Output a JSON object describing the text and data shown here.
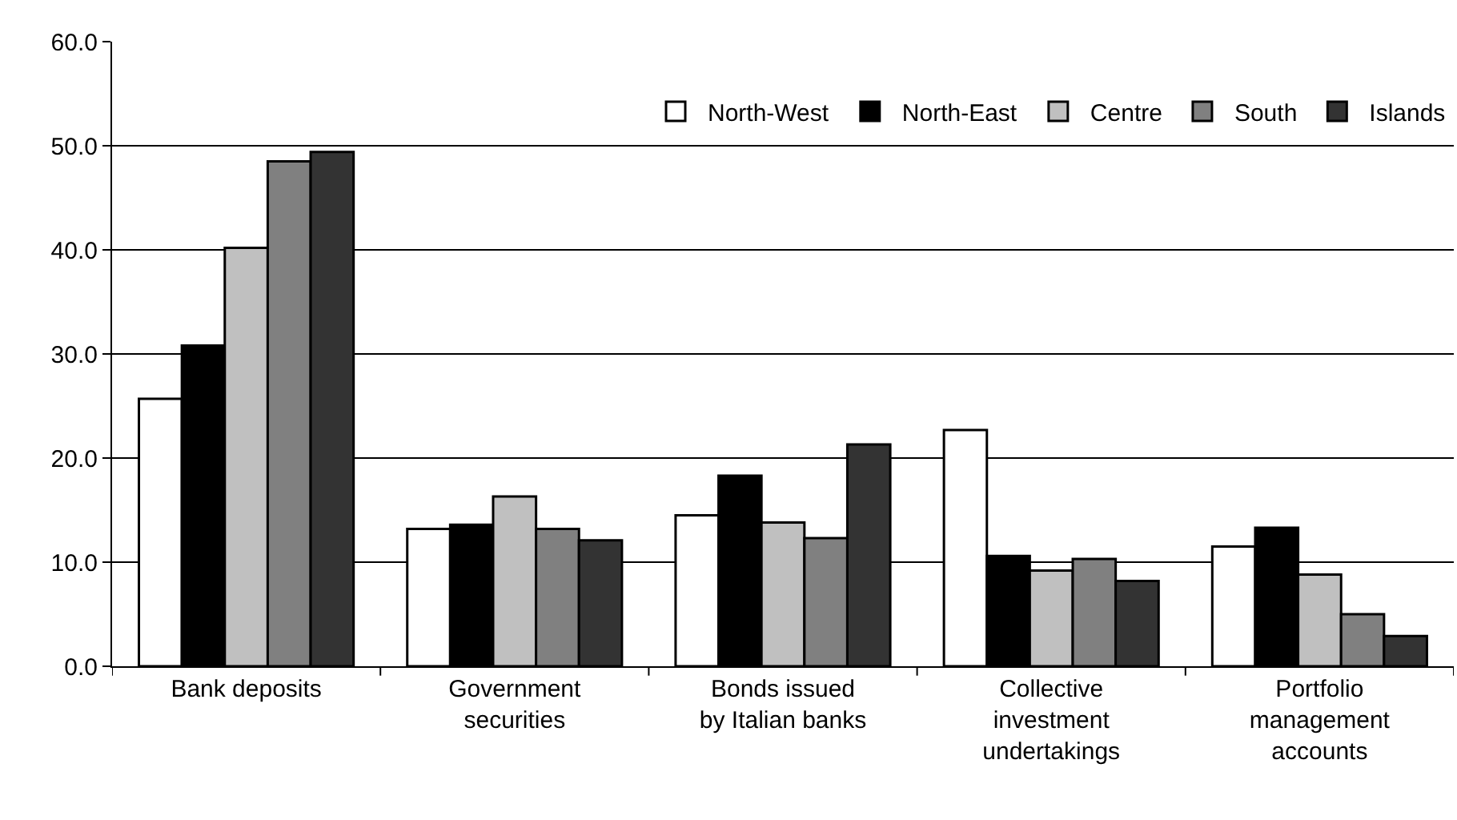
{
  "chart_data": {
    "type": "bar",
    "categories": [
      "Bank deposits",
      "Government\nsecurities",
      "Bonds issued\nby Italian banks",
      "Collective\ninvestment\nundertakings",
      "Portfolio\nmanagement\naccounts"
    ],
    "series": [
      {
        "name": "North-West",
        "color": "#ffffff",
        "values": [
          25.7,
          13.2,
          14.5,
          22.7,
          11.5
        ]
      },
      {
        "name": "North-East",
        "color": "#000000",
        "values": [
          30.8,
          13.6,
          18.3,
          10.6,
          13.3
        ]
      },
      {
        "name": "Centre",
        "color": "#c0c0c0",
        "values": [
          40.2,
          16.3,
          13.8,
          9.2,
          8.8
        ]
      },
      {
        "name": "South",
        "color": "#808080",
        "values": [
          48.5,
          13.2,
          12.3,
          10.3,
          5.0
        ]
      },
      {
        "name": "Islands",
        "color": "#333333",
        "values": [
          49.4,
          12.1,
          21.3,
          8.2,
          2.9
        ]
      }
    ],
    "ylim": [
      0,
      60
    ],
    "yticks": [
      {
        "value": 0,
        "label": "0.0"
      },
      {
        "value": 10,
        "label": "10.0"
      },
      {
        "value": 20,
        "label": "20.0"
      },
      {
        "value": 30,
        "label": "30.0"
      },
      {
        "value": 40,
        "label": "40.0"
      },
      {
        "value": 50,
        "label": "50.0"
      },
      {
        "value": 60,
        "label": "60.0"
      }
    ],
    "grid": "y",
    "legend": "top right"
  }
}
